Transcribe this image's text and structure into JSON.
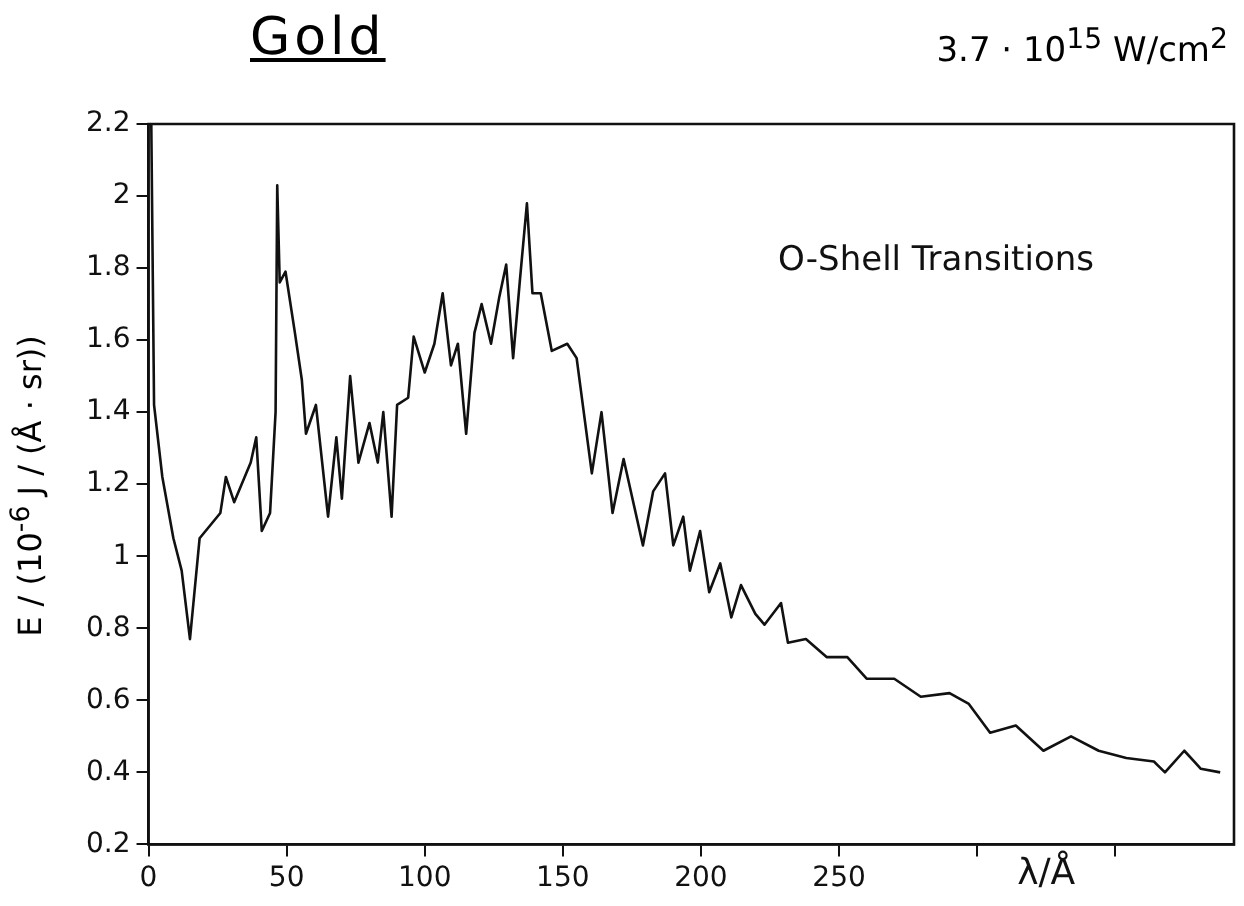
{
  "chart_data": {
    "type": "line",
    "title": "Gold",
    "subtitle": "3.7 · 10$^{15}$ W/cm$^{2}$",
    "xlabel": "λ/Å",
    "ylabel": "E / (10$^{-6}$ J / (Å · sr))",
    "annotations": [
      "O-Shell Transitions"
    ],
    "xlim": [
      0,
      393
    ],
    "xticks": [
      0,
      50,
      100,
      150,
      200,
      250,
      {
        "value": 300,
        "label": null
      },
      {
        "value": 350,
        "label": null
      }
    ],
    "ylim": [
      0.2,
      2.2
    ],
    "yticks": [
      0.2,
      0.4,
      0.6,
      0.8,
      1,
      1.2,
      1.4,
      1.6,
      1.8,
      2,
      2.2
    ],
    "grid": false,
    "legend": false,
    "marker": "none",
    "line_style": "solid",
    "series": [
      {
        "color": "#111111",
        "x": [
          1,
          2,
          5,
          9,
          12,
          15,
          18.5,
          26,
          28,
          31,
          37,
          39,
          41,
          44,
          46,
          46.6,
          47.5,
          49.6,
          53,
          55.5,
          57,
          60.6,
          65,
          68,
          70,
          73,
          76,
          80,
          83,
          85,
          88,
          90,
          94,
          96,
          100,
          103.5,
          106.5,
          109.5,
          112,
          115,
          118,
          120.6,
          124,
          127,
          129.5,
          132,
          134.5,
          137,
          139,
          142,
          146,
          151.6,
          155,
          160.5,
          164,
          168,
          172,
          179,
          182.7,
          187,
          190,
          193.6,
          196,
          199.7,
          203,
          207,
          211,
          214.5,
          219.7,
          223,
          229,
          231.5,
          238,
          245.5,
          253,
          260,
          270,
          279.6,
          290,
          297,
          304.7,
          314,
          324,
          334,
          344,
          354,
          364,
          368,
          375,
          381,
          388
        ],
        "values": [
          2.2,
          1.42,
          1.22,
          1.05,
          0.96,
          0.77,
          1.05,
          1.12,
          1.22,
          1.15,
          1.26,
          1.33,
          1.07,
          1.12,
          1.4,
          2.03,
          1.76,
          1.79,
          1.62,
          1.49,
          1.34,
          1.42,
          1.11,
          1.33,
          1.16,
          1.5,
          1.26,
          1.37,
          1.26,
          1.4,
          1.11,
          1.42,
          1.44,
          1.61,
          1.51,
          1.59,
          1.73,
          1.53,
          1.59,
          1.34,
          1.62,
          1.7,
          1.59,
          1.72,
          1.81,
          1.55,
          1.77,
          1.98,
          1.73,
          1.73,
          1.57,
          1.59,
          1.55,
          1.23,
          1.4,
          1.12,
          1.27,
          1.03,
          1.18,
          1.23,
          1.03,
          1.11,
          0.96,
          1.07,
          0.9,
          0.98,
          0.83,
          0.92,
          0.84,
          0.81,
          0.87,
          0.76,
          0.77,
          0.72,
          0.72,
          0.66,
          0.66,
          0.61,
          0.62,
          0.59,
          0.51,
          0.53,
          0.46,
          0.5,
          0.46,
          0.44,
          0.43,
          0.4,
          0.46,
          0.41,
          0.4
        ]
      }
    ]
  }
}
